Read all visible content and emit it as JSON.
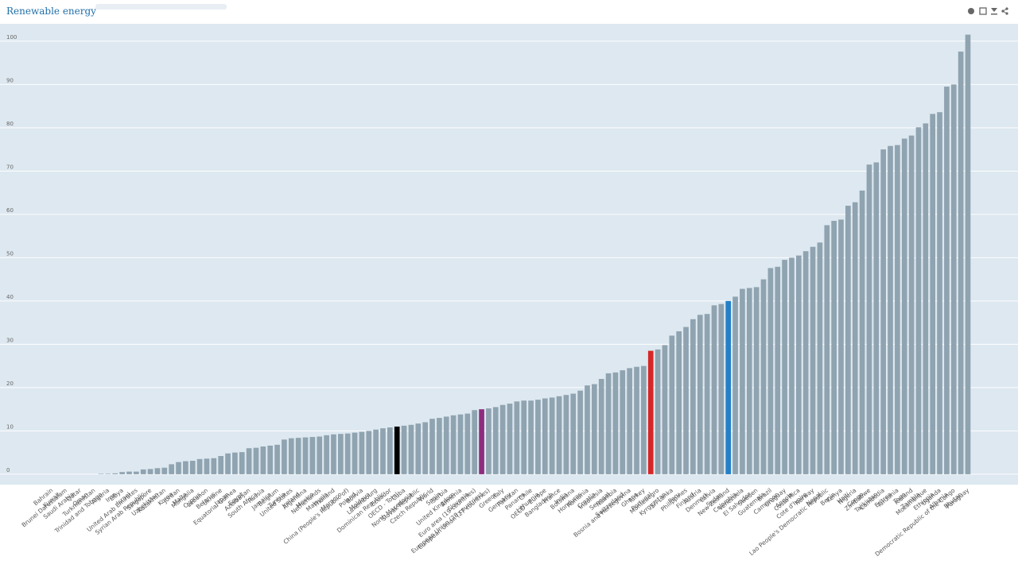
{
  "chart_data": {
    "type": "bar",
    "title": "Renewable energy",
    "categories": [
      "Bahrain",
      "Kuwait",
      "Brunei Darussalam",
      "Saudi Arabia",
      "Qatar",
      "Oman",
      "Turkmenistan",
      "Trinidad and Tobago",
      "Algeria",
      "Iran",
      "Libya",
      "Israel",
      "United Arab Emirates",
      "Syrian Arab Republic",
      "Singapore",
      "Uzbekistan",
      "Kazakhstan",
      "Korea",
      "Jordan",
      "Malta",
      "Mongolia",
      "Cyprus",
      "Lebanon",
      "Belarus",
      "Ukraine",
      "Japan",
      "Equatorial Guinea",
      "Egypt",
      "Azerbaijan",
      "South Africa",
      "Russia",
      "Jamaica",
      "Belgium",
      "Tunisia",
      "United States",
      "Ireland",
      "Argentina",
      "Mexico",
      "Netherlands",
      "Malaysia",
      "Thailand",
      "Morocco",
      "China (People's Republic of)",
      "Poland",
      "Bolivia",
      "Moldova",
      "Luxembourg",
      "Dominican Republic",
      "Ecuador",
      "OECD - Total",
      "Cuba",
      "North Macedonia",
      "Slovak Republic",
      "Czech Republic",
      "World",
      "Spain",
      "Serbia",
      "United Kingdom",
      "Armenia",
      "Slovenia",
      "Euro area (19 countries)",
      "European Union (28 countries)",
      "European Union (27 countries)",
      "Greece",
      "Italy",
      "Germany",
      "Pakistan",
      "Panama",
      "Chile",
      "Lithuania",
      "OECD - Europe",
      "Bangladesh",
      "France",
      "India",
      "Botswana",
      "Honduras",
      "Romania",
      "Croatia",
      "Indonesia",
      "Senegal",
      "Namibia",
      "Switzerland",
      "Bosnia and Herzegovina",
      "Ghana",
      "Turkey",
      "Portugal",
      "Montenegro",
      "Kyrgyzstan",
      "Sri Lanka",
      "Peru",
      "Philippines",
      "Finland",
      "Austria",
      "Denmark",
      "Latvia",
      "Sudan",
      "New Zealand",
      "Colombia",
      "Venezuela",
      "El Salvador",
      "Sweden",
      "Guatemala",
      "Brazil",
      "Cameroon",
      "Uruguay",
      "Angola",
      "Costa Rica",
      "Cote d'Ivoire",
      "Norway",
      "Nepal",
      "Lao People's Democratic Republic",
      "Benin",
      "Kenya",
      "Haiti",
      "Nigeria",
      "Congo",
      "Zimbabwe",
      "Tajikistan",
      "Cambodia",
      "Eritrea",
      "Tanzania",
      "Togo",
      "Iceland",
      "Zambia",
      "Mozambique",
      "Ethiopia",
      "Uganda",
      "Albania",
      "Democratic Republic of the Congo",
      "Bhutan",
      "Paraguay"
    ],
    "values": [
      0,
      0,
      0,
      0,
      0,
      0,
      0,
      0.1,
      0.1,
      0.2,
      0.5,
      0.6,
      0.6,
      1.1,
      1.2,
      1.4,
      1.5,
      2.3,
      2.8,
      3.0,
      3.1,
      3.5,
      3.6,
      3.7,
      4.2,
      4.8,
      5.0,
      5.1,
      6.0,
      6.1,
      6.4,
      6.6,
      6.8,
      8.0,
      8.3,
      8.4,
      8.5,
      8.6,
      8.7,
      9.0,
      9.2,
      9.3,
      9.4,
      9.6,
      9.8,
      10.0,
      10.3,
      10.6,
      10.8,
      11.0,
      11.2,
      11.4,
      11.7,
      12.0,
      12.8,
      13.0,
      13.3,
      13.6,
      13.8,
      14.0,
      14.8,
      15.0,
      15.2,
      15.5,
      16.0,
      16.3,
      16.8,
      17.0,
      17.0,
      17.2,
      17.5,
      17.7,
      18.0,
      18.3,
      18.6,
      19.3,
      20.5,
      20.8,
      22.0,
      23.3,
      23.5,
      24.0,
      24.5,
      24.8,
      25.0,
      28.5,
      28.8,
      29.8,
      32.0,
      33.0,
      34.0,
      35.8,
      36.8,
      37.0,
      39.0,
      39.3,
      40.0,
      41.0,
      42.8,
      43.0,
      43.2,
      45.0,
      47.6,
      47.9,
      49.5,
      50.0,
      50.5,
      51.5,
      52.5,
      53.5,
      57.5,
      58.5,
      58.8,
      62.0,
      62.8,
      65.5,
      71.5,
      72.0,
      75.0,
      75.8,
      76.0,
      77.5,
      78.2,
      80.1,
      81.0,
      83.2,
      83.6,
      89.5,
      90.0,
      97.6,
      101.5
    ],
    "colors": [
      "#8fa3b0",
      "#8fa3b0",
      "#8fa3b0",
      "#8fa3b0",
      "#8fa3b0",
      "#8fa3b0",
      "#8fa3b0",
      "#8fa3b0",
      "#8fa3b0",
      "#8fa3b0",
      "#8fa3b0",
      "#8fa3b0",
      "#8fa3b0",
      "#8fa3b0",
      "#8fa3b0",
      "#8fa3b0",
      "#8fa3b0",
      "#8fa3b0",
      "#8fa3b0",
      "#8fa3b0",
      "#8fa3b0",
      "#8fa3b0",
      "#8fa3b0",
      "#8fa3b0",
      "#8fa3b0",
      "#8fa3b0",
      "#8fa3b0",
      "#8fa3b0",
      "#8fa3b0",
      "#8fa3b0",
      "#8fa3b0",
      "#8fa3b0",
      "#8fa3b0",
      "#8fa3b0",
      "#8fa3b0",
      "#8fa3b0",
      "#8fa3b0",
      "#8fa3b0",
      "#8fa3b0",
      "#8fa3b0",
      "#8fa3b0",
      "#8fa3b0",
      "#8fa3b0",
      "#8fa3b0",
      "#8fa3b0",
      "#8fa3b0",
      "#8fa3b0",
      "#8fa3b0",
      "#8fa3b0",
      "#000000",
      "#8fa3b0",
      "#8fa3b0",
      "#8fa3b0",
      "#8fa3b0",
      "#8fa3b0",
      "#8fa3b0",
      "#8fa3b0",
      "#8fa3b0",
      "#8fa3b0",
      "#8fa3b0",
      "#8fa3b0",
      "#8e2c7e",
      "#8fa3b0",
      "#8fa3b0",
      "#8fa3b0",
      "#8fa3b0",
      "#8fa3b0",
      "#8fa3b0",
      "#8fa3b0",
      "#8fa3b0",
      "#8fa3b0",
      "#8fa3b0",
      "#8fa3b0",
      "#8fa3b0",
      "#8fa3b0",
      "#8fa3b0",
      "#8fa3b0",
      "#8fa3b0",
      "#8fa3b0",
      "#8fa3b0",
      "#8fa3b0",
      "#8fa3b0",
      "#8fa3b0",
      "#8fa3b0",
      "#8fa3b0",
      "#d62728",
      "#8fa3b0",
      "#8fa3b0",
      "#8fa3b0",
      "#8fa3b0",
      "#8fa3b0",
      "#8fa3b0",
      "#8fa3b0",
      "#8fa3b0",
      "#8fa3b0",
      "#8fa3b0",
      "#2380c8",
      "#8fa3b0",
      "#8fa3b0",
      "#8fa3b0",
      "#8fa3b0",
      "#8fa3b0",
      "#8fa3b0",
      "#8fa3b0",
      "#8fa3b0",
      "#8fa3b0",
      "#8fa3b0",
      "#8fa3b0",
      "#8fa3b0",
      "#8fa3b0",
      "#8fa3b0",
      "#8fa3b0",
      "#8fa3b0",
      "#8fa3b0",
      "#8fa3b0",
      "#8fa3b0",
      "#8fa3b0",
      "#8fa3b0",
      "#8fa3b0",
      "#8fa3b0",
      "#8fa3b0",
      "#8fa3b0",
      "#8fa3b0",
      "#8fa3b0",
      "#8fa3b0",
      "#8fa3b0",
      "#8fa3b0",
      "#8fa3b0",
      "#8fa3b0",
      "#8fa3b0",
      "#8fa3b0"
    ],
    "ylim": [
      -2.4,
      104
    ],
    "yticks": [
      0,
      10,
      20,
      30,
      40,
      50,
      60,
      70,
      80,
      90,
      100
    ],
    "grid": true
  }
}
